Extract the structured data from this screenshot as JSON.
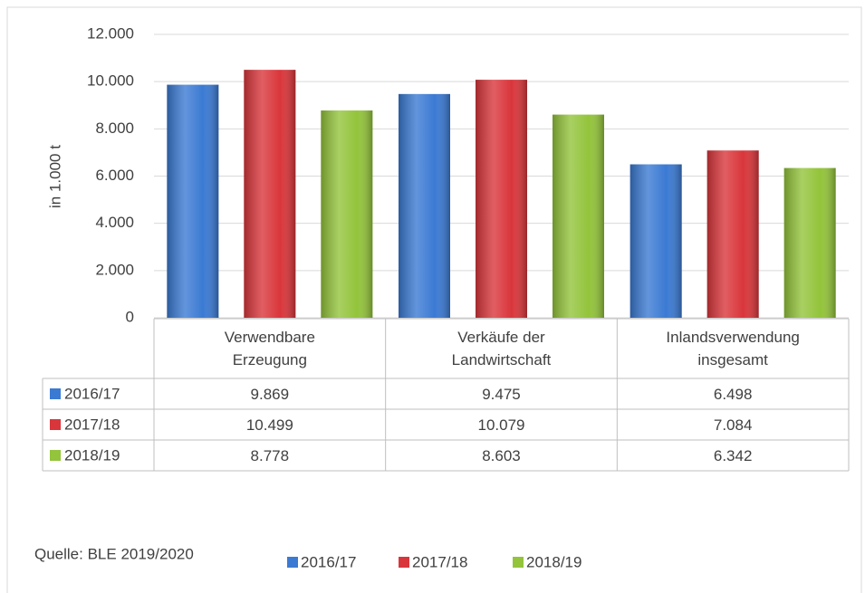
{
  "chart_data": {
    "type": "bar",
    "y_label": "in 1.000 t",
    "source": "Quelle: BLE 2019/2020",
    "categories": [
      "Verwendbare\nErzeugung",
      "Verkäufe der\nLandwirtschaft",
      "Inlandsverwendung\ninsgesamt"
    ],
    "series": [
      {
        "name": "2016/17",
        "color": "#3b7ad3",
        "values": [
          9869,
          9475,
          6498
        ],
        "value_labels": [
          "9.869",
          "9.475",
          "6.498"
        ]
      },
      {
        "name": "2017/18",
        "color": "#d9363b",
        "values": [
          10499,
          10079,
          7084
        ],
        "value_labels": [
          "10.499",
          "10.079",
          "7.084"
        ]
      },
      {
        "name": "2018/19",
        "color": "#93c43b",
        "values": [
          8778,
          8603,
          6342
        ],
        "value_labels": [
          "8.778",
          "8.603",
          "6.342"
        ]
      }
    ],
    "ylim": [
      0,
      12000
    ],
    "yticks": [
      0,
      {
        "value": 2000,
        "label": "2.000"
      },
      {
        "value": 4000,
        "label": "4.000"
      },
      {
        "value": 6000,
        "label": "6.000"
      },
      {
        "value": 8000,
        "label": "8.000"
      },
      {
        "value": 10000,
        "label": "10.000"
      },
      {
        "value": 12000,
        "label": "12.000"
      }
    ],
    "grid": true,
    "legend": "bottom"
  }
}
